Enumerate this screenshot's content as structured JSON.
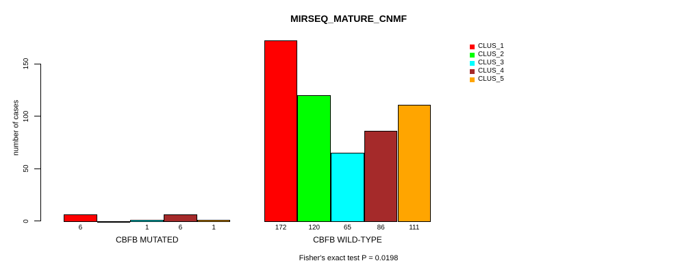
{
  "chart_data": {
    "type": "bar",
    "title": "MIRSEQ_MATURE_CNMF",
    "ylabel": "number of cases",
    "xlabel": "",
    "ylim": [
      0,
      175
    ],
    "y_ticks": [
      0,
      50,
      100,
      150
    ],
    "y_tick_labels": [
      "0",
      "50",
      "100",
      "150"
    ],
    "grid": false,
    "legend_position": "top-right",
    "categories": [
      "CBFB MUTATED",
      "CBFB WILD-TYPE"
    ],
    "series": [
      {
        "name": "CLUS_1",
        "color": "#FF0000",
        "values": [
          6,
          172
        ]
      },
      {
        "name": "CLUS_2",
        "color": "#00FF00",
        "values": [
          0,
          120
        ]
      },
      {
        "name": "CLUS_3",
        "color": "#00FFFF",
        "values": [
          1,
          65
        ]
      },
      {
        "name": "CLUS_4",
        "color": "#A52A2A",
        "values": [
          6,
          86
        ]
      },
      {
        "name": "CLUS_5",
        "color": "#FFA500",
        "values": [
          1,
          111
        ]
      }
    ],
    "bar_labels": [
      [
        "6",
        "",
        "1",
        "6",
        "1"
      ],
      [
        "172",
        "120",
        "65",
        "86",
        "111"
      ]
    ],
    "annotation": "Fisher's exact test P = 0.0198"
  }
}
